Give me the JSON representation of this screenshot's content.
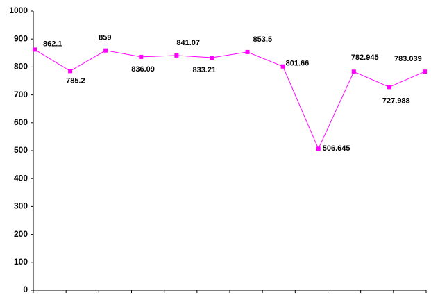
{
  "chart_data": {
    "type": "line",
    "values": [
      862.1,
      785.2,
      859,
      836.09,
      841.07,
      833.21,
      853.5,
      801.66,
      506.645,
      782.945,
      727.988,
      783.039
    ],
    "color": "#ff00ff",
    "ylim": [
      0,
      1000
    ],
    "yticks": [
      0,
      100,
      200,
      300,
      400,
      500,
      600,
      700,
      800,
      900,
      1000
    ]
  }
}
